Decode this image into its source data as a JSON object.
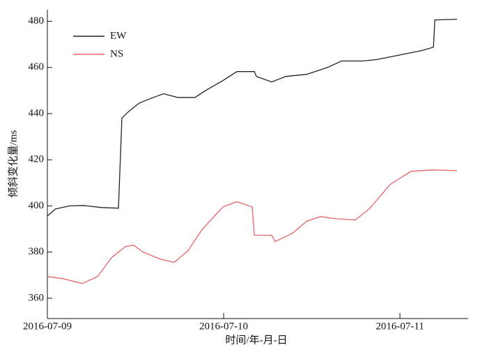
{
  "chart_data": {
    "type": "line",
    "xlabel": "时间/年-月-日",
    "ylabel": "倾斜变化量/ms",
    "xlim": [
      0,
      2.387
    ],
    "xticks": [
      {
        "value": 0,
        "label": "2016-07-09"
      },
      {
        "value": 1,
        "label": "2016-07-10"
      },
      {
        "value": 2,
        "label": "2016-07-11"
      }
    ],
    "ylim": [
      351.2,
      485
    ],
    "yticks": [
      360,
      380,
      400,
      420,
      440,
      460,
      480
    ],
    "legend": "upper left",
    "series": [
      {
        "name": "EW",
        "color": "#222222",
        "x": [
          0,
          0.047,
          0.126,
          0.206,
          0.304,
          0.403,
          0.423,
          0.462,
          0.522,
          0.601,
          0.66,
          0.739,
          0.838,
          0.897,
          0.996,
          1.075,
          1.174,
          1.186,
          1.273,
          1.352,
          1.47,
          1.589,
          1.668,
          1.787,
          1.866,
          1.984,
          2.123,
          2.19,
          2.198,
          2.324
        ],
        "values": [
          395.7,
          398.7,
          400,
          400.2,
          399.3,
          399,
          438,
          441,
          444.6,
          447,
          448.6,
          447,
          447,
          450,
          454.3,
          458.2,
          458.2,
          456.1,
          453.7,
          456.1,
          457,
          460,
          462.8,
          462.8,
          463.4,
          465.2,
          467.3,
          468.8,
          480.6,
          480.9
        ]
      },
      {
        "name": "NS",
        "color": "#e8636b",
        "x": [
          0,
          0.087,
          0.198,
          0.285,
          0.364,
          0.443,
          0.49,
          0.542,
          0.64,
          0.719,
          0.798,
          0.877,
          0.996,
          1.075,
          1.162,
          1.174,
          1.273,
          1.292,
          1.391,
          1.47,
          1.549,
          1.628,
          1.747,
          1.826,
          1.945,
          2.063,
          2.182,
          2.324
        ],
        "values": [
          369.4,
          368.5,
          366.4,
          369.4,
          377.6,
          382.4,
          383,
          380,
          377,
          375.5,
          380.6,
          389.7,
          399.6,
          401.8,
          399.6,
          387.3,
          387.3,
          384.5,
          388.2,
          393.3,
          395.4,
          394.5,
          393.9,
          398.7,
          409.3,
          415,
          415.6,
          415.3
        ]
      }
    ]
  }
}
